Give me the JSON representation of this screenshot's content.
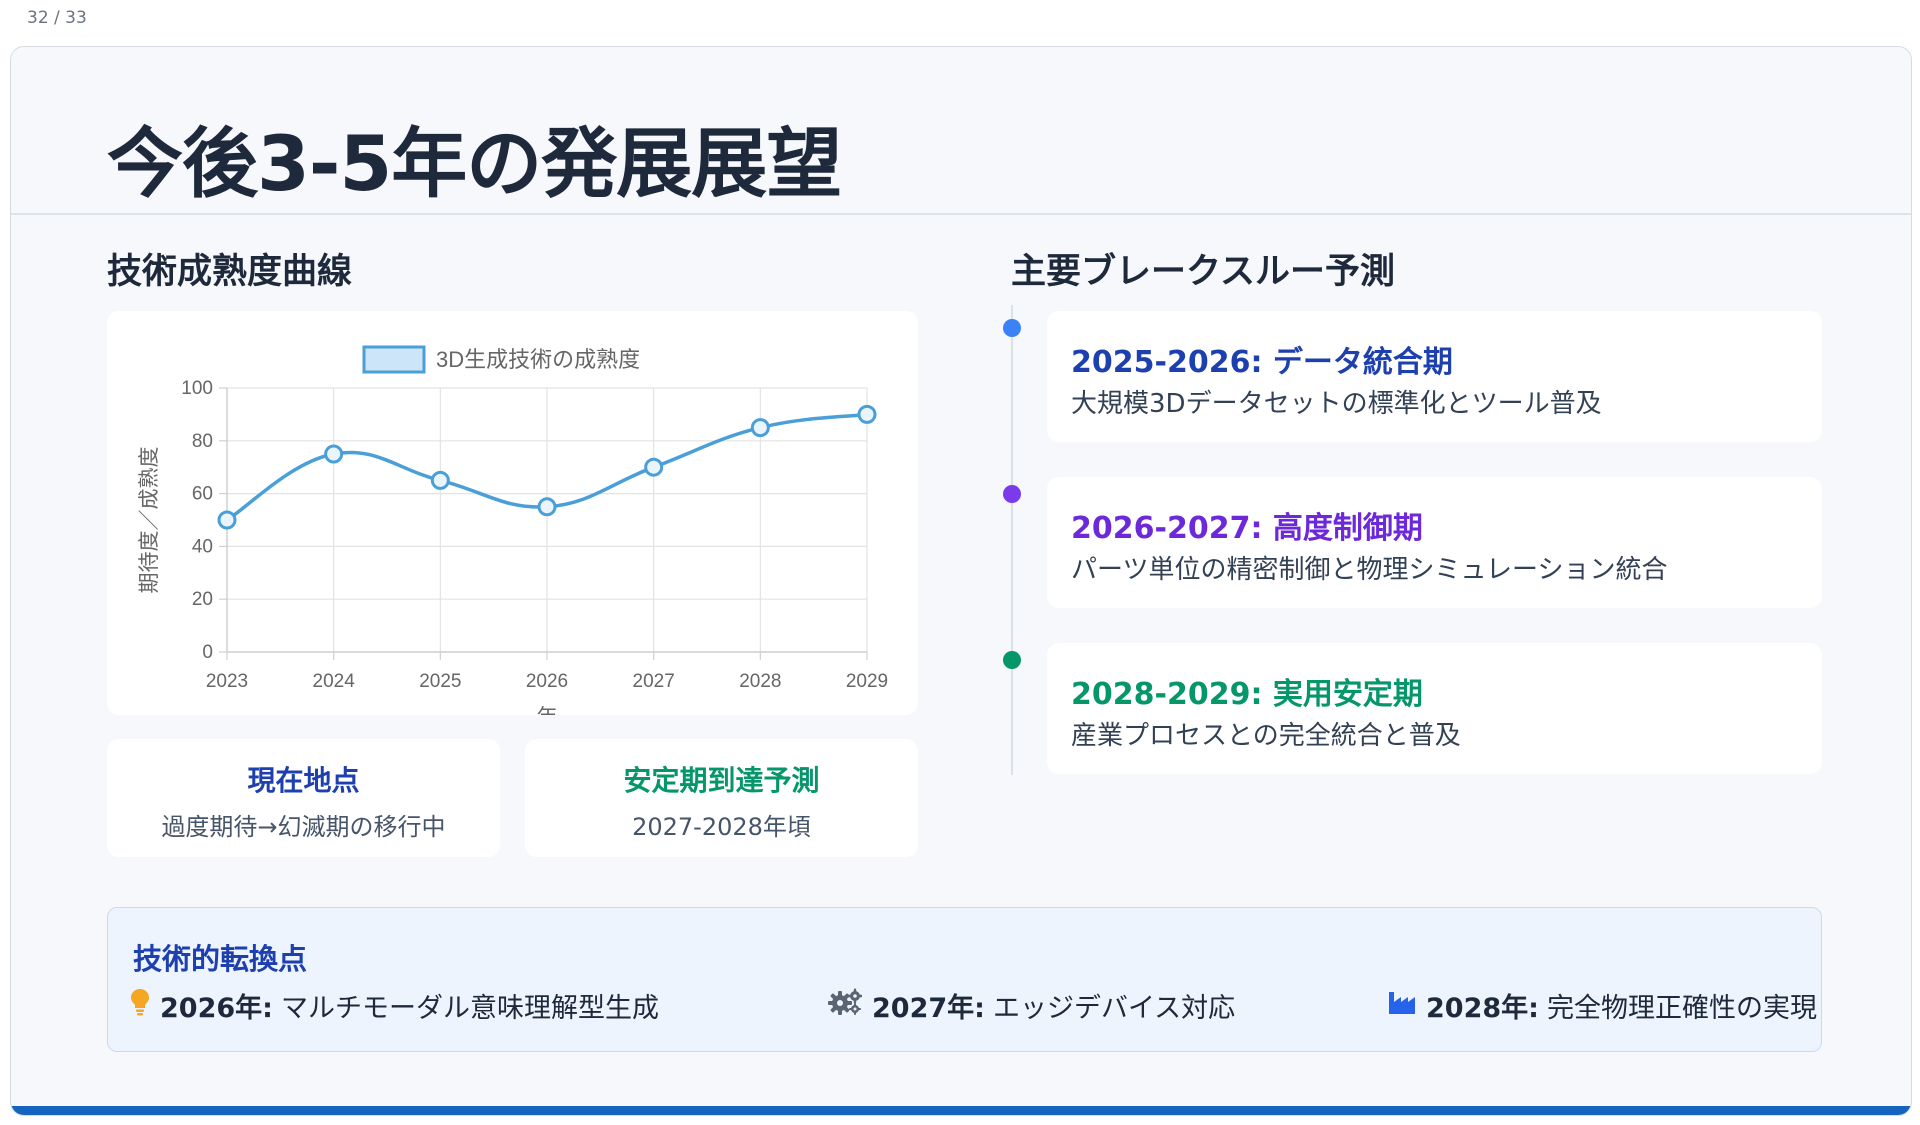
{
  "page_counter": "32 / 33",
  "title": "今後3-5年の発展展望",
  "left": {
    "heading": "技術成熟度曲線",
    "stats": [
      {
        "title": "現在地点",
        "desc": "過度期待→幻滅期の移行中",
        "color": "#1e40af"
      },
      {
        "title": "安定期到達予測",
        "desc": "2027-2028年頃",
        "color": "#059669"
      }
    ]
  },
  "right": {
    "heading": "主要ブレークスルー予測",
    "items": [
      {
        "title": "2025-2026: データ統合期",
        "desc": "大規模3Dデータセットの標準化とツール普及",
        "color": "#1e40af",
        "dot_color": "#3b82f6"
      },
      {
        "title": "2026-2027: 高度制御期",
        "desc": "パーツ単位の精密制御と物理シミュレーション統合",
        "color": "#6d28d9",
        "dot_color": "#7c3aed"
      },
      {
        "title": "2028-2029: 実用安定期",
        "desc": "産業プロセスとの完全統合と普及",
        "color": "#059669",
        "dot_color": "#059669"
      }
    ]
  },
  "turning_points": {
    "title": "技術的転換点",
    "items": [
      {
        "icon": "lightbulb-icon",
        "year": "2026年:",
        "text": "マルチモーダル意味理解型生成"
      },
      {
        "icon": "gears-icon",
        "year": "2027年:",
        "text": "エッジデバイス対応"
      },
      {
        "icon": "industry-icon",
        "year": "2028年:",
        "text": "完全物理正確性の実現"
      }
    ]
  },
  "chart_data": {
    "type": "line",
    "title": "",
    "x": [
      "2023",
      "2024",
      "2025",
      "2026",
      "2027",
      "2028",
      "2029"
    ],
    "series": [
      {
        "name": "3D生成技術の成熟度",
        "values": [
          50,
          75,
          65,
          55,
          70,
          85,
          90
        ],
        "color": "#4a9fd8"
      }
    ],
    "xlabel": "年",
    "ylabel": "期待度／成熟度",
    "ylim": [
      0,
      100
    ],
    "yticks": [
      0,
      20,
      40,
      60,
      80,
      100
    ],
    "grid": true,
    "legend": "top"
  },
  "colors": {
    "accent_bar": "#1565c0",
    "text_dark": "#1e293b"
  }
}
